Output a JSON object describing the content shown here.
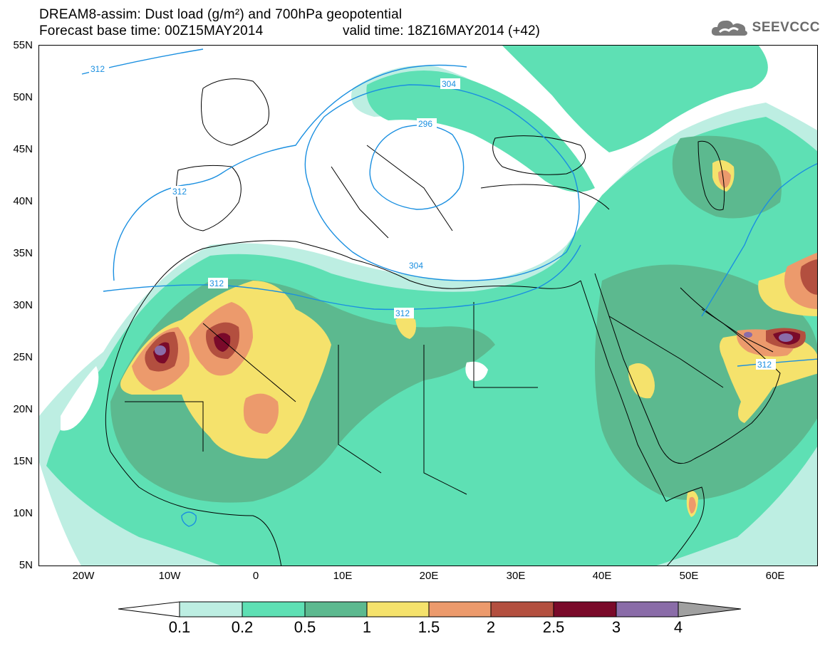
{
  "header": {
    "title_line1": "DREAM8-assim: Dust load (g/m²) and 700hPa geopotential",
    "title_line2": "Forecast base time: 00Z15MAY2014",
    "valid_time": "valid time: 18Z16MAY2014 (+42)",
    "logo_text": "SEEVCCC",
    "logo_icon": "cloud-icon"
  },
  "axes": {
    "lat_labels": [
      "55N",
      "50N",
      "45N",
      "40N",
      "35N",
      "30N",
      "25N",
      "20N",
      "15N",
      "10N",
      "5N"
    ],
    "lon_labels": [
      "20W",
      "10W",
      "0",
      "10E",
      "20E",
      "30E",
      "40E",
      "50E",
      "60E"
    ]
  },
  "contours": {
    "labels": [
      "312",
      "304",
      "296",
      "304",
      "312",
      "312",
      "312",
      "312"
    ]
  },
  "legend": {
    "levels": [
      "0.1",
      "0.2",
      "0.5",
      "1",
      "1.5",
      "2",
      "2.5",
      "3",
      "4"
    ],
    "colors": [
      "#ffffff",
      "#bdeee2",
      "#5ee0b4",
      "#5cb98f",
      "#f5e26c",
      "#ec9a6c",
      "#b34f3f",
      "#7a0a2a",
      "#8a6ca8",
      "#a0a0a0"
    ]
  },
  "colors": {
    "contour": "#1a8fe0",
    "coast": "#000000"
  }
}
